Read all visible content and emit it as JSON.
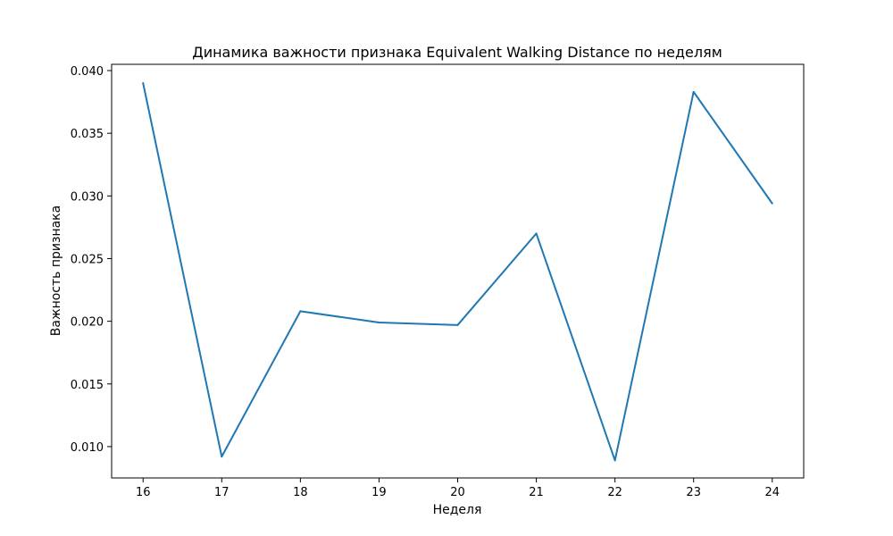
{
  "chart_data": {
    "type": "line",
    "title": "Динамика важности признака Equivalent Walking Distance по неделям",
    "xlabel": "Неделя",
    "ylabel": "Важность признака",
    "x": [
      16,
      17,
      18,
      19,
      20,
      21,
      22,
      23,
      24
    ],
    "series": [
      {
        "values": [
          0.039,
          0.0092,
          0.0208,
          0.0199,
          0.0197,
          0.027,
          0.0089,
          0.0383,
          0.0294
        ]
      }
    ],
    "xticks": [
      "16",
      "17",
      "18",
      "19",
      "20",
      "21",
      "22",
      "23",
      "24"
    ],
    "yticks": [
      "0.010",
      "0.015",
      "0.020",
      "0.025",
      "0.030",
      "0.035",
      "0.040"
    ],
    "xlim": [
      15.6,
      24.4
    ],
    "ylim": [
      0.0075,
      0.0405
    ],
    "grid": false,
    "colors": {
      "line": "#1f77b4",
      "axes": "#000000",
      "background": "#ffffff"
    }
  }
}
